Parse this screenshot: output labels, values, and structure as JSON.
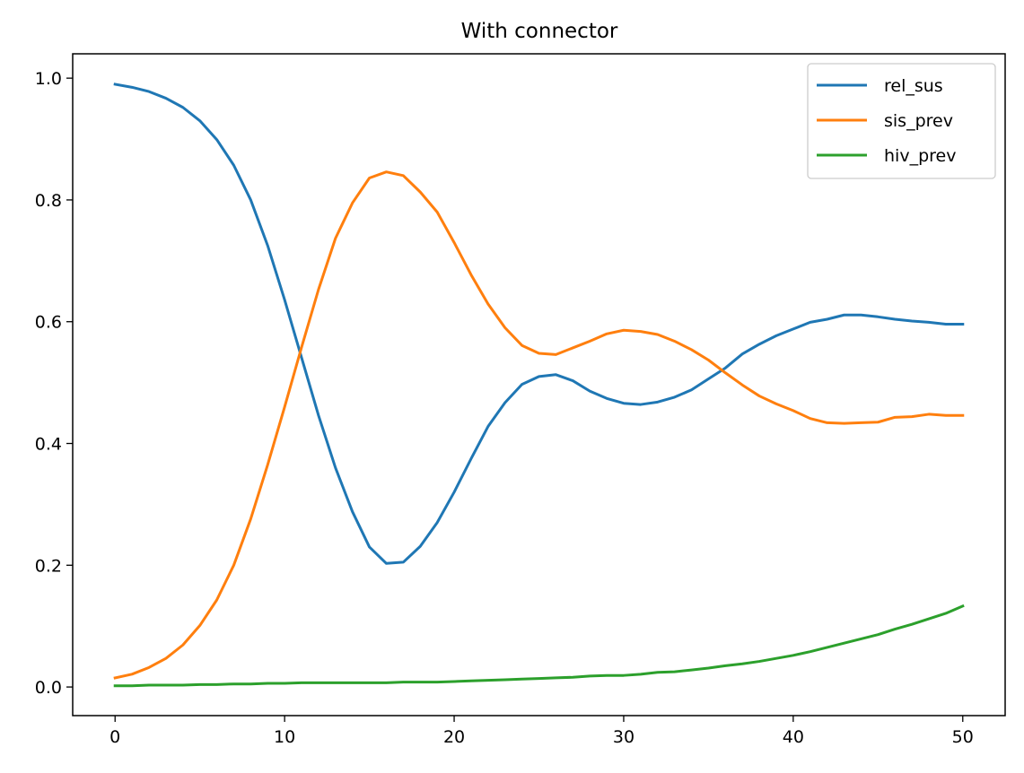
{
  "chart_data": {
    "type": "line",
    "title": "With connector",
    "xlabel": "",
    "ylabel": "",
    "xlim": [
      -2.5,
      52.5
    ],
    "ylim": [
      -0.047,
      1.04
    ],
    "xticks": [
      0,
      10,
      20,
      30,
      40,
      50
    ],
    "yticks": [
      0.0,
      0.2,
      0.4,
      0.6,
      0.8,
      1.0
    ],
    "xtick_labels": [
      "0",
      "10",
      "20",
      "30",
      "40",
      "50"
    ],
    "ytick_labels": [
      "0.0",
      "0.2",
      "0.4",
      "0.6",
      "0.8",
      "1.0"
    ],
    "grid": false,
    "legend_position": "top-right",
    "x": [
      0,
      1,
      2,
      3,
      4,
      5,
      6,
      7,
      8,
      9,
      10,
      11,
      12,
      13,
      14,
      15,
      16,
      17,
      18,
      19,
      20,
      21,
      22,
      23,
      24,
      25,
      26,
      27,
      28,
      29,
      30,
      31,
      32,
      33,
      34,
      35,
      36,
      37,
      38,
      39,
      40,
      41,
      42,
      43,
      44,
      45,
      46,
      47,
      48,
      49,
      50
    ],
    "series": [
      {
        "name": "rel_sus",
        "color": "#1f77b4",
        "values": [
          0.99,
          0.985,
          0.978,
          0.967,
          0.952,
          0.93,
          0.899,
          0.857,
          0.8,
          0.725,
          0.636,
          0.541,
          0.446,
          0.36,
          0.288,
          0.23,
          0.203,
          0.205,
          0.231,
          0.27,
          0.32,
          0.375,
          0.428,
          0.467,
          0.497,
          0.51,
          0.513,
          0.503,
          0.486,
          0.474,
          0.466,
          0.464,
          0.468,
          0.476,
          0.488,
          0.506,
          0.524,
          0.547,
          0.563,
          0.577,
          0.588,
          0.599,
          0.604,
          0.611,
          0.611,
          0.608,
          0.604,
          0.601,
          0.599,
          0.596,
          0.596
        ]
      },
      {
        "name": "sis_prev",
        "color": "#ff7f0e",
        "values": [
          0.015,
          0.021,
          0.032,
          0.047,
          0.069,
          0.101,
          0.143,
          0.2,
          0.276,
          0.365,
          0.46,
          0.558,
          0.653,
          0.737,
          0.795,
          0.836,
          0.846,
          0.84,
          0.813,
          0.78,
          0.73,
          0.677,
          0.629,
          0.59,
          0.561,
          0.548,
          0.546,
          0.557,
          0.568,
          0.58,
          0.586,
          0.584,
          0.579,
          0.568,
          0.554,
          0.537,
          0.516,
          0.496,
          0.478,
          0.465,
          0.454,
          0.441,
          0.434,
          0.433,
          0.434,
          0.435,
          0.443,
          0.444,
          0.448,
          0.446,
          0.446
        ]
      },
      {
        "name": "hiv_prev",
        "color": "#2ca02c",
        "values": [
          0.002,
          0.002,
          0.003,
          0.003,
          0.003,
          0.004,
          0.004,
          0.005,
          0.005,
          0.006,
          0.006,
          0.007,
          0.007,
          0.007,
          0.007,
          0.007,
          0.007,
          0.008,
          0.008,
          0.008,
          0.009,
          0.01,
          0.011,
          0.012,
          0.013,
          0.014,
          0.015,
          0.016,
          0.018,
          0.019,
          0.019,
          0.021,
          0.024,
          0.025,
          0.028,
          0.031,
          0.035,
          0.038,
          0.042,
          0.047,
          0.052,
          0.058,
          0.065,
          0.072,
          0.079,
          0.086,
          0.095,
          0.103,
          0.112,
          0.121,
          0.133
        ]
      }
    ]
  }
}
